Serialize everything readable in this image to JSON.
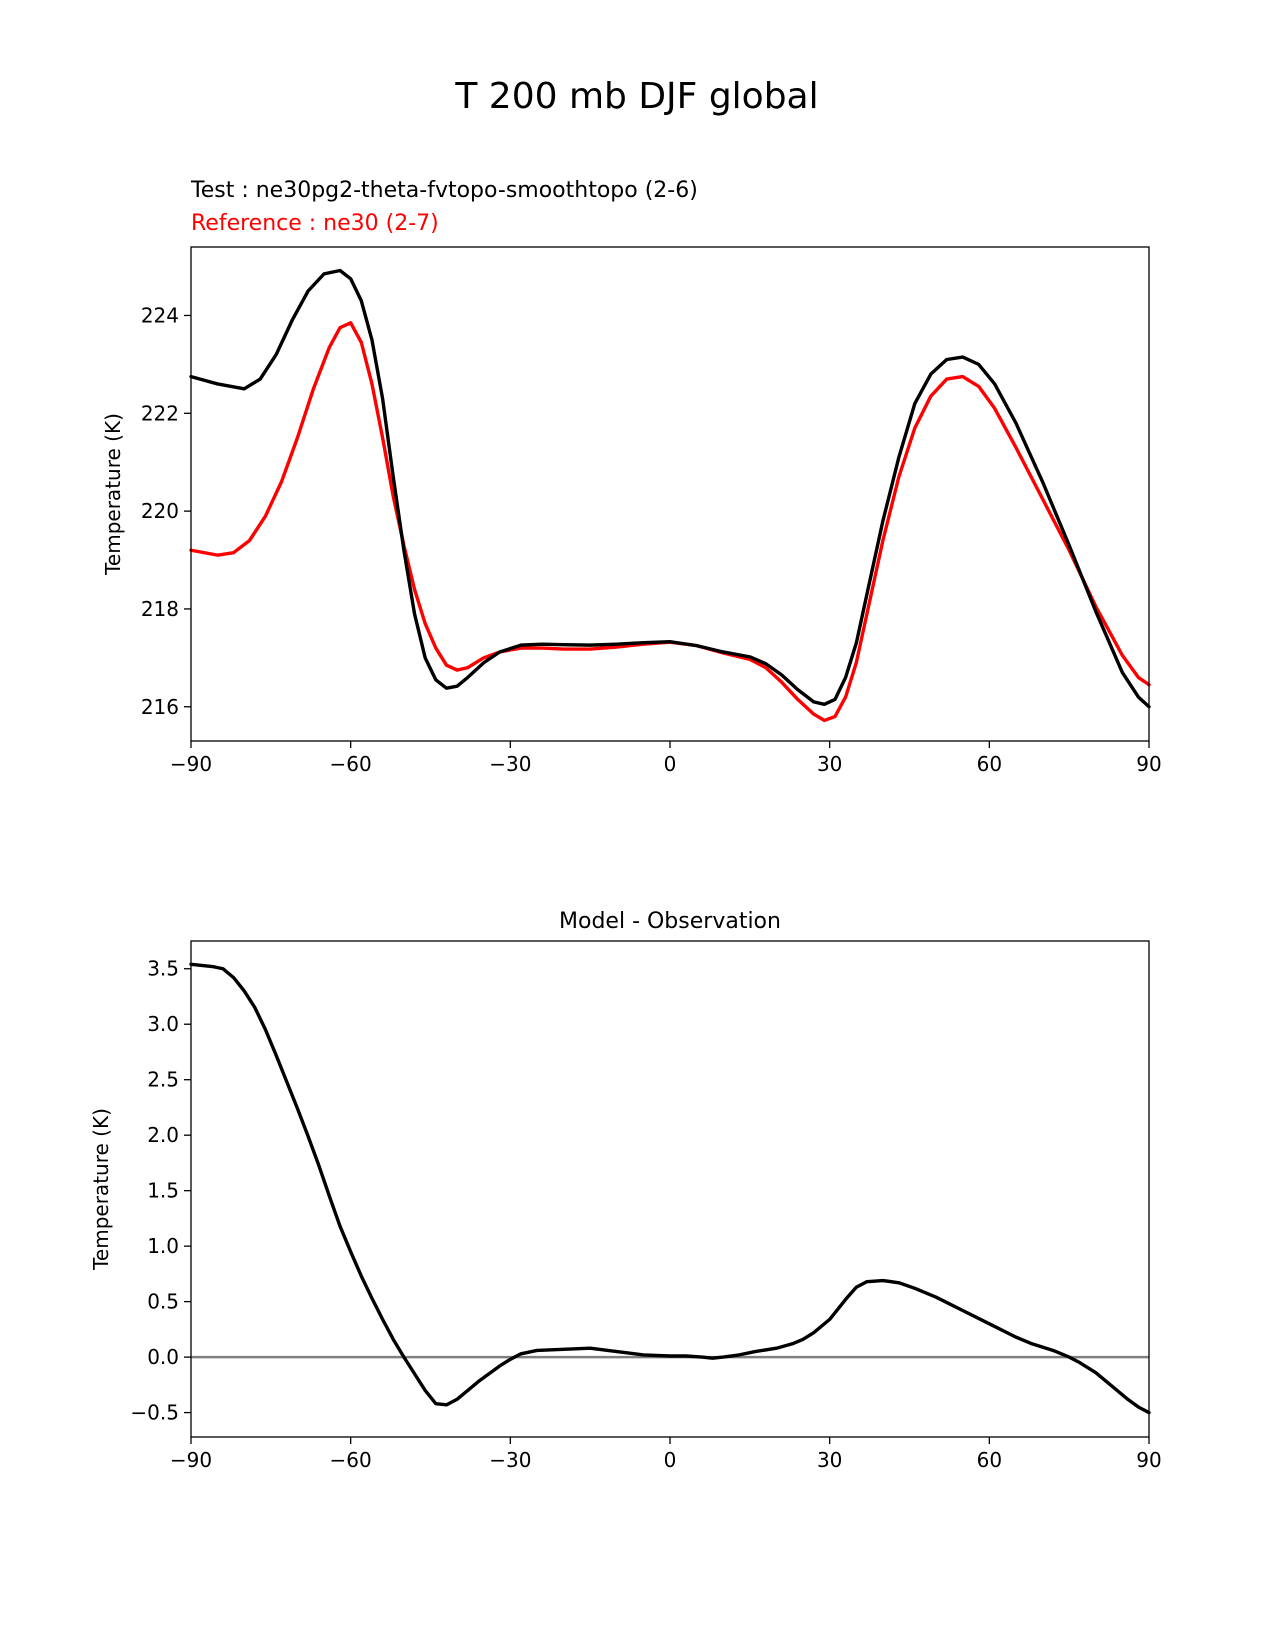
{
  "figure_title": "T 200 mb DJF global",
  "chart_data": [
    {
      "type": "line",
      "test_label": "Test : ne30pg2-theta-fvtopo-smoothtopo (2-6)",
      "reference_label": "Reference : ne30 (2-7)",
      "xlabel": "",
      "ylabel": "Temperature (K)",
      "xlim": [
        -90,
        90
      ],
      "ylim": [
        215.3,
        225.4
      ],
      "xticks": [
        -90,
        -60,
        -30,
        0,
        30,
        60,
        90
      ],
      "xtick_labels": [
        "−90",
        "−60",
        "−30",
        "0",
        "30",
        "60",
        "90"
      ],
      "yticks": [
        216,
        218,
        220,
        222,
        224
      ],
      "ytick_labels": [
        "216",
        "218",
        "220",
        "222",
        "224"
      ],
      "series": [
        {
          "name": "Test",
          "color": "#000000",
          "x": [
            -90,
            -85,
            -80,
            -77,
            -74,
            -71,
            -68,
            -65,
            -62,
            -60,
            -58,
            -56,
            -54,
            -52,
            -50,
            -48,
            -46,
            -44,
            -42,
            -40,
            -38,
            -35,
            -32,
            -28,
            -24,
            -20,
            -15,
            -10,
            -5,
            0,
            5,
            10,
            15,
            18,
            21,
            24,
            27,
            29,
            31,
            33,
            35,
            37,
            40,
            43,
            46,
            49,
            52,
            55,
            58,
            61,
            65,
            70,
            75,
            80,
            85,
            88,
            90
          ],
          "y": [
            222.75,
            222.6,
            222.5,
            222.7,
            223.2,
            223.9,
            224.5,
            224.85,
            224.92,
            224.75,
            224.3,
            223.5,
            222.3,
            220.7,
            219.2,
            217.9,
            217.0,
            216.55,
            216.38,
            216.42,
            216.6,
            216.9,
            217.12,
            217.26,
            217.28,
            217.27,
            217.26,
            217.28,
            217.31,
            217.33,
            217.25,
            217.12,
            217.02,
            216.88,
            216.65,
            216.35,
            216.1,
            216.05,
            216.15,
            216.6,
            217.3,
            218.3,
            219.8,
            221.1,
            222.2,
            222.8,
            223.1,
            223.15,
            223.0,
            222.6,
            221.8,
            220.6,
            219.3,
            217.95,
            216.7,
            216.2,
            216.0
          ]
        },
        {
          "name": "Reference",
          "color": "#ff0000",
          "x": [
            -90,
            -85,
            -82,
            -79,
            -76,
            -73,
            -70,
            -67,
            -64,
            -62,
            -60,
            -58,
            -56,
            -54,
            -52,
            -50,
            -48,
            -46,
            -44,
            -42,
            -40,
            -38,
            -35,
            -32,
            -28,
            -24,
            -20,
            -15,
            -10,
            -5,
            0,
            5,
            10,
            15,
            18,
            21,
            24,
            27,
            29,
            31,
            33,
            35,
            37,
            40,
            43,
            46,
            49,
            52,
            55,
            58,
            61,
            65,
            70,
            75,
            80,
            85,
            88,
            90
          ],
          "y": [
            219.2,
            219.1,
            219.15,
            219.4,
            219.9,
            220.6,
            221.5,
            222.5,
            223.35,
            223.75,
            223.85,
            223.45,
            222.6,
            221.5,
            220.3,
            219.3,
            218.4,
            217.7,
            217.2,
            216.85,
            216.75,
            216.8,
            217.0,
            217.12,
            217.2,
            217.2,
            217.18,
            217.18,
            217.22,
            217.28,
            217.32,
            217.25,
            217.1,
            216.97,
            216.8,
            216.5,
            216.15,
            215.85,
            215.72,
            215.8,
            216.2,
            216.9,
            217.9,
            219.4,
            220.7,
            221.7,
            222.35,
            222.7,
            222.75,
            222.55,
            222.1,
            221.3,
            220.25,
            219.2,
            218.05,
            217.05,
            216.6,
            216.45
          ]
        }
      ]
    },
    {
      "type": "line",
      "title": "Model - Observation",
      "xlabel": "",
      "ylabel": "Temperature (K)",
      "xlim": [
        -90,
        90
      ],
      "ylim": [
        -0.72,
        3.75
      ],
      "xticks": [
        -90,
        -60,
        -30,
        0,
        30,
        60,
        90
      ],
      "xtick_labels": [
        "−90",
        "−60",
        "−30",
        "0",
        "30",
        "60",
        "90"
      ],
      "yticks": [
        -0.5,
        0.0,
        0.5,
        1.0,
        1.5,
        2.0,
        2.5,
        3.0,
        3.5
      ],
      "ytick_labels": [
        "−0.5",
        "0.0",
        "0.5",
        "1.0",
        "1.5",
        "2.0",
        "2.5",
        "3.0",
        "3.5"
      ],
      "zero_line": {
        "y": 0,
        "color": "#808080"
      },
      "series": [
        {
          "name": "Model - Observation",
          "color": "#000000",
          "x": [
            -90,
            -88,
            -86,
            -84,
            -82,
            -80,
            -78,
            -76,
            -74,
            -72,
            -70,
            -68,
            -66,
            -64,
            -62,
            -60,
            -58,
            -56,
            -54,
            -52,
            -50,
            -48,
            -46,
            -44,
            -42,
            -40,
            -38,
            -36,
            -34,
            -32,
            -30,
            -28,
            -25,
            -20,
            -15,
            -10,
            -5,
            0,
            3,
            6,
            8,
            10,
            13,
            16,
            20,
            23,
            25,
            27,
            30,
            33,
            35,
            37,
            40,
            43,
            46,
            50,
            55,
            60,
            65,
            68,
            72,
            75,
            77,
            80,
            83,
            86,
            88,
            90
          ],
          "y": [
            3.54,
            3.53,
            3.52,
            3.5,
            3.42,
            3.3,
            3.15,
            2.95,
            2.72,
            2.48,
            2.24,
            1.99,
            1.73,
            1.45,
            1.18,
            0.95,
            0.73,
            0.53,
            0.34,
            0.16,
            0.0,
            -0.15,
            -0.3,
            -0.42,
            -0.43,
            -0.38,
            -0.3,
            -0.22,
            -0.15,
            -0.08,
            -0.02,
            0.03,
            0.06,
            0.07,
            0.08,
            0.05,
            0.02,
            0.01,
            0.01,
            0.0,
            -0.01,
            0.0,
            0.02,
            0.05,
            0.08,
            0.12,
            0.16,
            0.22,
            0.34,
            0.52,
            0.63,
            0.68,
            0.69,
            0.67,
            0.62,
            0.54,
            0.42,
            0.3,
            0.18,
            0.12,
            0.06,
            0.0,
            -0.05,
            -0.14,
            -0.26,
            -0.38,
            -0.45,
            -0.5
          ]
        }
      ]
    }
  ]
}
